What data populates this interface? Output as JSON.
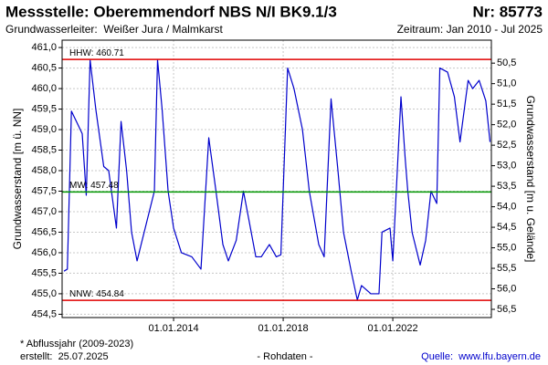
{
  "chart_data": {
    "type": "line",
    "title": "Messstelle: Oberemmendorf NBS N/I BK9.1/3",
    "number": "Nr: 85773",
    "subtitle": "Grundwasserleiter:  Weißer Jura / Malmkarst",
    "period": "Zeitraum: Jan 2010 - Jul 2025",
    "y_label": "Grundwasserstand [m ü. NN]",
    "y2_label": "Grundwasserstand [m u. Gelände]",
    "footnote": "* Abflussjahr (2009-2023)",
    "created": "erstellt:  25.07.2025",
    "raw_note": "- Rohdaten -",
    "source": "Quelle:  www.lfu.bayern.de",
    "color": "#0000cc",
    "grid": true,
    "xlim": [
      "2009-12-07",
      "2025-08-07"
    ],
    "xticks": [
      {
        "value": "2014-01-01",
        "label": "01.01.2014"
      },
      {
        "value": "2018-01-01",
        "label": "01.01.2018"
      },
      {
        "value": "2022-01-01",
        "label": "01.01.2022"
      }
    ],
    "ylim": [
      454.42,
      461.18
    ],
    "yticks": [
      {
        "value": 454.5,
        "label": "454,5"
      },
      {
        "value": 455,
        "label": "455,0"
      },
      {
        "value": 455.5,
        "label": "455,5"
      },
      {
        "value": 456,
        "label": "456,0"
      },
      {
        "value": 456.5,
        "label": "456,5"
      },
      {
        "value": 457,
        "label": "457,0"
      },
      {
        "value": 457.5,
        "label": "457,5"
      },
      {
        "value": 458,
        "label": "458,0"
      },
      {
        "value": 458.5,
        "label": "458,5"
      },
      {
        "value": 459,
        "label": "459,0"
      },
      {
        "value": 459.5,
        "label": "459,5"
      },
      {
        "value": 460,
        "label": "460,0"
      },
      {
        "value": 460.5,
        "label": "460,5"
      },
      {
        "value": 461,
        "label": "461,0"
      }
    ],
    "y2lim": [
      56.7,
      49.94
    ],
    "y2ticks": [
      {
        "value": 50.5,
        "label": "50,5"
      },
      {
        "value": 51,
        "label": "51,0"
      },
      {
        "value": 51.5,
        "label": "51,5"
      },
      {
        "value": 52,
        "label": "52,0"
      },
      {
        "value": 52.5,
        "label": "52,5"
      },
      {
        "value": 53,
        "label": "53,0"
      },
      {
        "value": 53.5,
        "label": "53,5"
      },
      {
        "value": 54,
        "label": "54,0"
      },
      {
        "value": 54.5,
        "label": "54,5"
      },
      {
        "value": 55,
        "label": "55,0"
      },
      {
        "value": 55.5,
        "label": "55,5"
      },
      {
        "value": 56,
        "label": "56,0"
      },
      {
        "value": 56.5,
        "label": "56,5"
      }
    ],
    "reference_lines": [
      {
        "label": "HHW: 460.71",
        "value": 460.71,
        "color": "#e00000"
      },
      {
        "label": "MW: 457.48",
        "value": 457.48,
        "color": "#009900"
      },
      {
        "label": "NNW: 454.84",
        "value": 454.84,
        "color": "#e00000"
      }
    ],
    "x": [
      "2010-01-01",
      "2010-02-15",
      "2010-04-10",
      "2010-06-15",
      "2010-09-01",
      "2010-10-25",
      "2010-12-15",
      "2011-03-01",
      "2011-06-15",
      "2011-08-20",
      "2011-12-01",
      "2012-02-01",
      "2012-04-15",
      "2012-06-20",
      "2012-09-01",
      "2013-01-01",
      "2013-04-20",
      "2013-06-01",
      "2013-08-01",
      "2013-10-20",
      "2014-01-01",
      "2014-04-15",
      "2014-09-01",
      "2015-01-01",
      "2015-04-15",
      "2015-07-20",
      "2015-10-20",
      "2016-01-01",
      "2016-04-15",
      "2016-07-20",
      "2016-10-01",
      "2017-01-01",
      "2017-03-15",
      "2017-07-01",
      "2017-10-01",
      "2017-12-01",
      "2018-03-01",
      "2018-05-25",
      "2018-09-15",
      "2018-12-15",
      "2019-04-20",
      "2019-07-01",
      "2019-10-01",
      "2020-01-01",
      "2020-03-15",
      "2020-07-01",
      "2020-09-15",
      "2020-11-10",
      "2021-03-15",
      "2021-07-01",
      "2021-08-10",
      "2021-11-25",
      "2022-01-01",
      "2022-04-20",
      "2022-06-15",
      "2022-07-20",
      "2022-09-15",
      "2023-01-01",
      "2023-03-15",
      "2023-05-25",
      "2023-08-10",
      "2023-09-20",
      "2024-01-01",
      "2024-04-01",
      "2024-06-15",
      "2024-10-01",
      "2024-12-01",
      "2025-02-25",
      "2025-05-25",
      "2025-07-20"
    ],
    "values": [
      455.55,
      455.6,
      459.45,
      459.2,
      458.9,
      457.4,
      460.7,
      459.5,
      458.1,
      458.0,
      456.6,
      459.2,
      458.0,
      456.5,
      455.8,
      456.7,
      457.5,
      460.7,
      459.5,
      457.5,
      456.6,
      456.0,
      455.9,
      455.6,
      458.8,
      457.5,
      456.2,
      455.8,
      456.3,
      457.5,
      456.8,
      455.9,
      455.9,
      456.2,
      455.9,
      455.95,
      460.5,
      460.0,
      459.0,
      457.5,
      456.2,
      455.9,
      459.75,
      458.0,
      456.5,
      455.5,
      454.85,
      455.2,
      455.0,
      455.0,
      456.5,
      456.6,
      455.8,
      459.8,
      458.3,
      457.5,
      456.5,
      455.7,
      456.3,
      457.5,
      457.2,
      460.5,
      460.4,
      459.8,
      458.7,
      460.2,
      460.0,
      460.2,
      459.7,
      458.7
    ]
  }
}
